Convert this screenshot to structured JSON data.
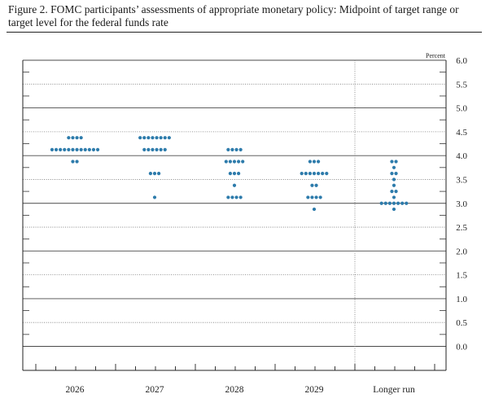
{
  "figure": {
    "title": "Figure 2. FOMC participants’ assessments of appropriate monetary policy: Midpoint of target range or target level for the federal funds rate"
  },
  "chart_data": {
    "type": "scatter",
    "title": "Figure 2. FOMC participants’ assessments of appropriate monetary policy: Midpoint of target range or target level for the federal funds rate",
    "unit_label": "Percent",
    "ylim": [
      0,
      6
    ],
    "yticks": [
      "6.0",
      "5.5",
      "5.0",
      "4.5",
      "4.0",
      "3.5",
      "3.0",
      "2.5",
      "2.0",
      "1.5",
      "1.0",
      "0.5",
      "0.0"
    ],
    "categories": [
      "2026",
      "2027",
      "2028",
      "2029",
      "Longer run"
    ],
    "dot_color": "#2d7bab",
    "series": [
      {
        "category": "2026",
        "points": [
          {
            "y": 4.375,
            "count": 4
          },
          {
            "y": 4.125,
            "count": 12
          },
          {
            "y": 3.875,
            "count": 2
          }
        ]
      },
      {
        "category": "2027",
        "points": [
          {
            "y": 4.375,
            "count": 8
          },
          {
            "y": 4.125,
            "count": 6
          },
          {
            "y": 3.625,
            "count": 3
          },
          {
            "y": 3.125,
            "count": 1
          }
        ]
      },
      {
        "category": "2028",
        "points": [
          {
            "y": 4.125,
            "count": 4
          },
          {
            "y": 3.875,
            "count": 5
          },
          {
            "y": 3.625,
            "count": 3
          },
          {
            "y": 3.375,
            "count": 1
          },
          {
            "y": 3.125,
            "count": 4
          }
        ]
      },
      {
        "category": "2029",
        "points": [
          {
            "y": 3.875,
            "count": 3
          },
          {
            "y": 3.625,
            "count": 7
          },
          {
            "y": 3.375,
            "count": 2
          },
          {
            "y": 3.125,
            "count": 4
          },
          {
            "y": 2.875,
            "count": 1
          }
        ]
      },
      {
        "category": "Longer run",
        "points": [
          {
            "y": 3.875,
            "count": 2
          },
          {
            "y": 3.75,
            "count": 1
          },
          {
            "y": 3.625,
            "count": 2
          },
          {
            "y": 3.5,
            "count": 1
          },
          {
            "y": 3.375,
            "count": 1
          },
          {
            "y": 3.25,
            "count": 2
          },
          {
            "y": 3.125,
            "count": 1
          },
          {
            "y": 3.0,
            "count": 7
          },
          {
            "y": 2.875,
            "count": 1
          }
        ]
      }
    ]
  }
}
